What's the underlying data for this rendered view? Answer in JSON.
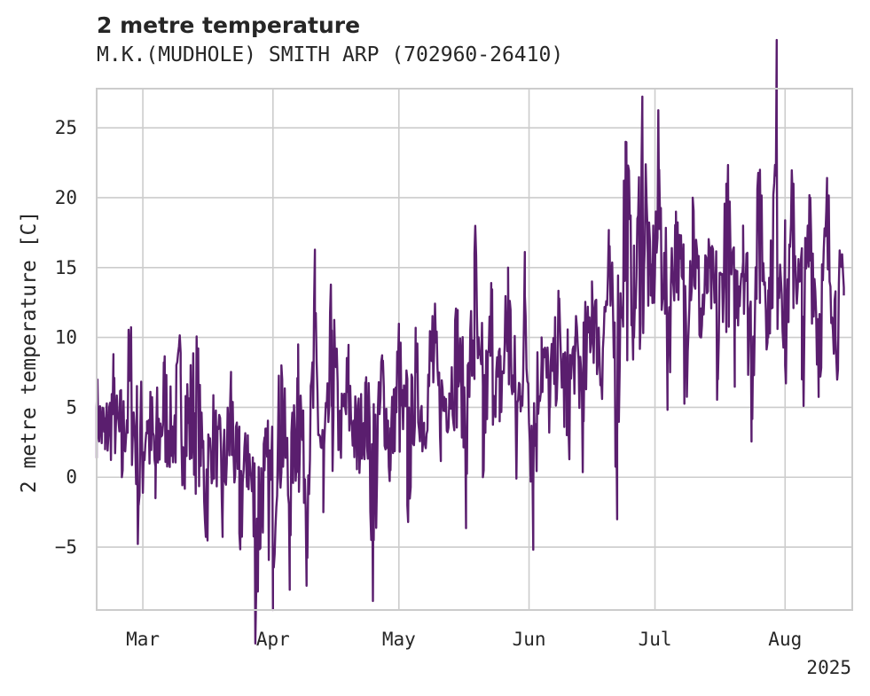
{
  "chart_data": {
    "type": "line",
    "title": "2 metre temperature",
    "subtitle": "M.K.(MUDHOLE) SMITH ARP (702960-26410)",
    "xlabel": "",
    "ylabel": "2 metre temperature [C]",
    "x_tick_labels": [
      "Mar",
      "Apr",
      "May",
      "Jun",
      "Jul",
      "Aug"
    ],
    "x_tick_dates": [
      "2025-03-01",
      "2025-04-01",
      "2025-05-01",
      "2025-06-01",
      "2025-07-01",
      "2025-08-01"
    ],
    "x_offset_label": "2025",
    "xlim": [
      "2025-02-18",
      "2025-08-17"
    ],
    "ylim": [
      -9.5,
      27.8
    ],
    "y_ticks": [
      -5,
      0,
      5,
      10,
      15,
      20,
      25
    ],
    "y_tick_labels": [
      "−5",
      "0",
      "5",
      "10",
      "15",
      "20",
      "25"
    ],
    "grid": true,
    "line_color": "#5a1e6e",
    "series": [
      {
        "x": [
          "2025-02-18",
          "2025-02-20",
          "2025-02-22",
          "2025-02-24",
          "2025-02-26",
          "2025-02-28",
          "2025-03-02",
          "2025-03-04",
          "2025-03-06",
          "2025-03-08",
          "2025-03-10",
          "2025-03-12",
          "2025-03-14",
          "2025-03-16",
          "2025-03-18",
          "2025-03-20",
          "2025-03-22",
          "2025-03-24",
          "2025-03-26",
          "2025-03-28",
          "2025-03-30",
          "2025-04-01",
          "2025-04-03",
          "2025-04-05",
          "2025-04-07",
          "2025-04-09",
          "2025-04-11",
          "2025-04-13",
          "2025-04-15",
          "2025-04-17",
          "2025-04-19",
          "2025-04-21",
          "2025-04-23",
          "2025-04-25",
          "2025-04-27",
          "2025-04-29",
          "2025-05-01",
          "2025-05-03",
          "2025-05-05",
          "2025-05-07",
          "2025-05-09",
          "2025-05-11",
          "2025-05-13",
          "2025-05-15",
          "2025-05-17",
          "2025-05-19",
          "2025-05-21",
          "2025-05-23",
          "2025-05-25",
          "2025-05-27",
          "2025-05-29",
          "2025-05-31",
          "2025-06-02",
          "2025-06-04",
          "2025-06-06",
          "2025-06-08",
          "2025-06-10",
          "2025-06-12",
          "2025-06-14",
          "2025-06-16",
          "2025-06-18",
          "2025-06-20",
          "2025-06-22",
          "2025-06-24",
          "2025-06-26",
          "2025-06-28",
          "2025-06-30",
          "2025-07-02",
          "2025-07-04",
          "2025-07-06",
          "2025-07-08",
          "2025-07-10",
          "2025-07-12",
          "2025-07-14",
          "2025-07-16",
          "2025-07-18",
          "2025-07-20",
          "2025-07-22",
          "2025-07-24",
          "2025-07-26",
          "2025-07-28",
          "2025-07-30",
          "2025-08-01",
          "2025-08-03",
          "2025-08-05",
          "2025-08-07",
          "2025-08-09",
          "2025-08-11",
          "2025-08-13",
          "2025-08-15"
        ],
        "y": [
          5.0,
          2.0,
          6.0,
          0.0,
          9.0,
          -2.0,
          4.0,
          -1.5,
          6.5,
          3.0,
          7.5,
          5.0,
          7.0,
          -2.5,
          4.0,
          -3.0,
          6.5,
          -4.0,
          3.0,
          -7.8,
          0.5,
          -5.0,
          8.0,
          -4.0,
          9.5,
          -3.0,
          11.0,
          -2.5,
          10.5,
          3.0,
          7.0,
          1.0,
          6.0,
          -4.5,
          8.0,
          0.5,
          9.0,
          -2.0,
          7.5,
          3.0,
          11.0,
          4.0,
          6.0,
          10.5,
          1.0,
          16.0,
          0.0,
          12.0,
          4.0,
          15.0,
          0.0,
          13.0,
          -1.0,
          10.0,
          5.0,
          11.0,
          3.0,
          9.0,
          4.0,
          14.0,
          7.0,
          15.0,
          3.0,
          24.0,
          10.0,
          26.0,
          13.0,
          22.0,
          8.0,
          19.0,
          6.0,
          20.0,
          10.0,
          15.0,
          7.0,
          21.0,
          10.0,
          18.0,
          6.0,
          22.0,
          10.0,
          25.5,
          8.0,
          21.0,
          7.0,
          20.0,
          8.0,
          19.0,
          10.0,
          13.0
        ]
      }
    ]
  }
}
